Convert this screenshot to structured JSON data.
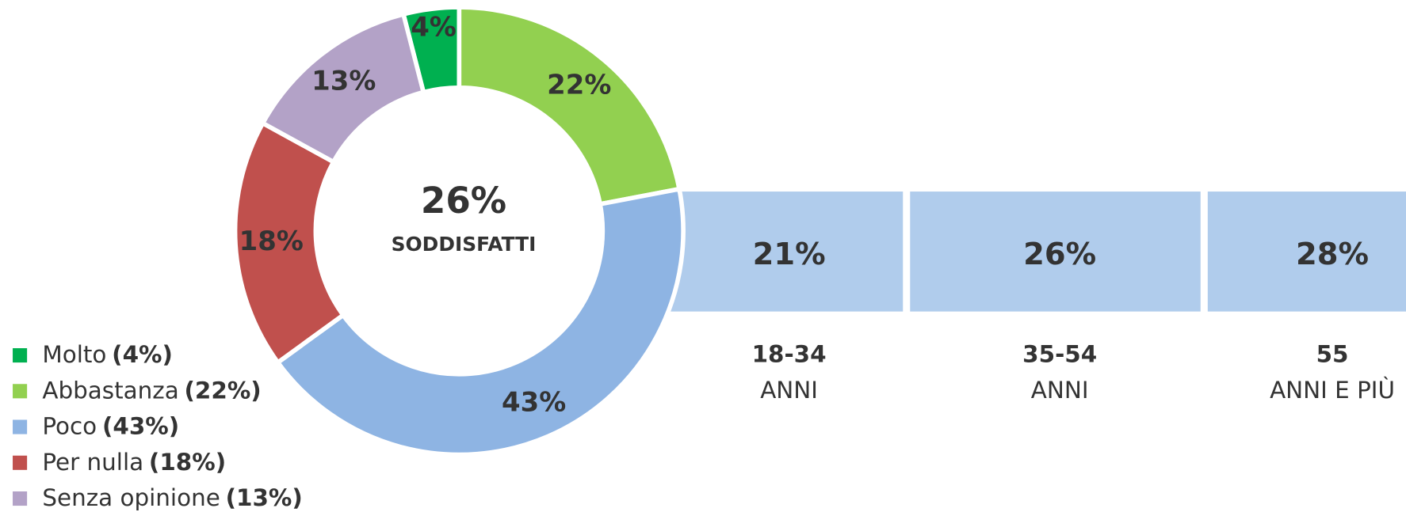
{
  "chart_data": {
    "type": "pie",
    "center_value": "26%",
    "center_label": "SODDISFATTI",
    "categories": [
      "Molto",
      "Abbastanza",
      "Poco",
      "Per nulla",
      "Senza opinione"
    ],
    "values": [
      4,
      22,
      43,
      18,
      13
    ],
    "value_labels": [
      "4%",
      "22%",
      "43%",
      "18%",
      "13%"
    ],
    "colors": [
      "#00b050",
      "#92d050",
      "#8eb4e3",
      "#c0504d",
      "#b3a2c7"
    ],
    "legend_value_labels": [
      "(4%)",
      "(22%)",
      "(43%)",
      "(18%)",
      "(13%)"
    ],
    "age_groups": [
      {
        "value": "21%",
        "label": "18-34",
        "sublabel": "ANNI"
      },
      {
        "value": "26%",
        "label": "35-54",
        "sublabel": "ANNI"
      },
      {
        "value": "28%",
        "label": "55",
        "sublabel": "ANNI E PIÙ"
      }
    ],
    "age_color": "#b0ccec"
  }
}
